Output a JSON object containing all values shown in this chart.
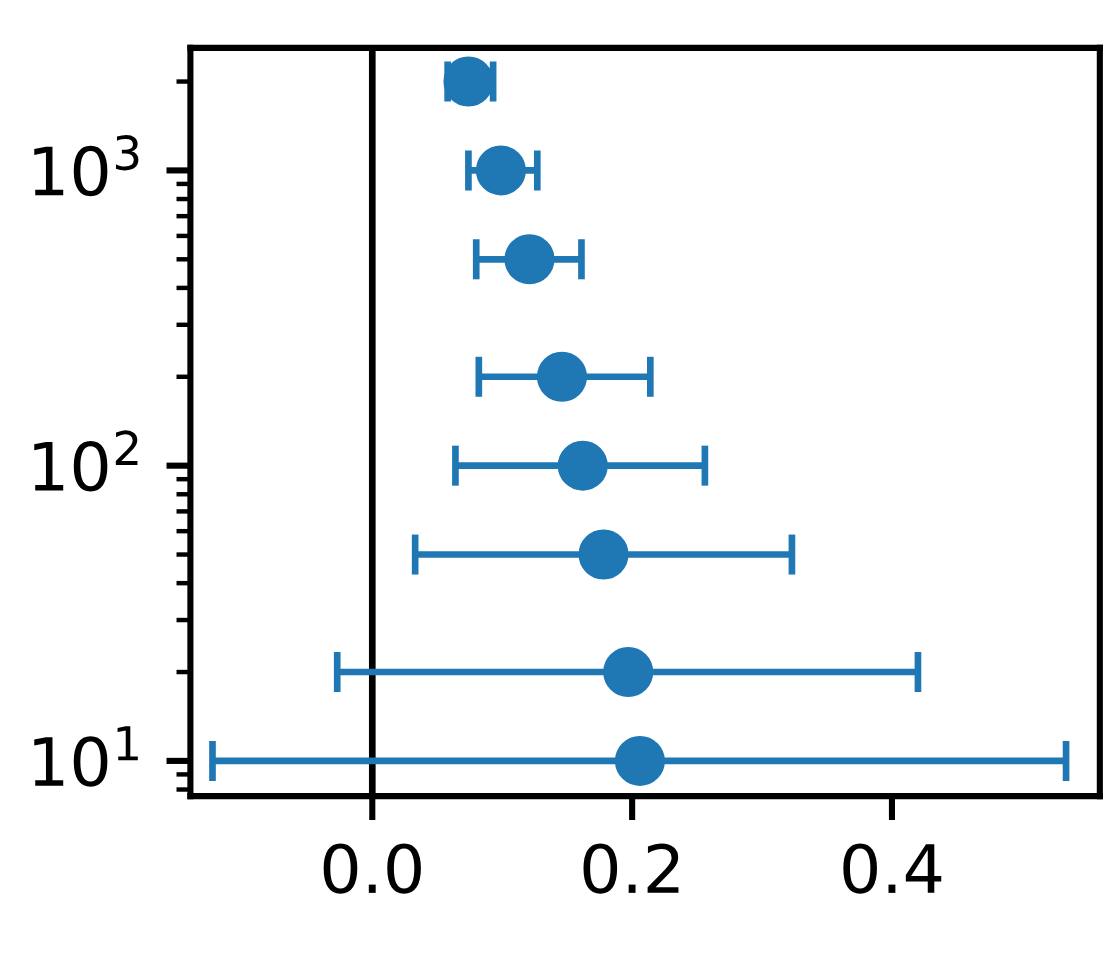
{
  "chart_data": {
    "type": "scatter",
    "series": [
      {
        "color": "#1f77b4",
        "x": [
          0.206,
          0.197,
          0.178,
          0.162,
          0.146,
          0.121,
          0.099,
          0.074
        ],
        "values": [
          10,
          20,
          50,
          100,
          200,
          500,
          1000,
          2000
        ],
        "xerrors": [
          [
            -0.123,
            0.534
          ],
          [
            -0.027,
            0.42
          ],
          [
            0.033,
            0.323
          ],
          [
            0.064,
            0.256
          ],
          [
            0.082,
            0.214
          ],
          [
            0.08,
            0.161
          ],
          [
            0.074,
            0.127
          ],
          [
            0.058,
            0.093
          ]
        ]
      }
    ],
    "marker": "circle",
    "log": "y",
    "grid": false,
    "xlim": [
      -0.14,
      0.56
    ],
    "ylim": [
      7.6,
      2600
    ],
    "xticks": [
      {
        "value": 0,
        "label": "0.0"
      },
      {
        "value": 0.2,
        "label": "0.2"
      },
      {
        "value": 0.4,
        "label": "0.4"
      }
    ],
    "yticks": [
      {
        "value": 8,
        "label": null
      },
      {
        "value": 9,
        "label": null
      },
      {
        "value": 10,
        "label": "10$^{1}$"
      },
      {
        "value": 20,
        "label": null
      },
      {
        "value": 30,
        "label": null
      },
      {
        "value": 40,
        "label": null
      },
      {
        "value": 50,
        "label": null
      },
      {
        "value": 60,
        "label": null
      },
      {
        "value": 70,
        "label": null
      },
      {
        "value": 80,
        "label": null
      },
      {
        "value": 90,
        "label": null
      },
      {
        "value": 100,
        "label": "10$^{2}$"
      },
      {
        "value": 200,
        "label": null
      },
      {
        "value": 300,
        "label": null
      },
      {
        "value": 400,
        "label": null
      },
      {
        "value": 500,
        "label": null
      },
      {
        "value": 600,
        "label": null
      },
      {
        "value": 700,
        "label": null
      },
      {
        "value": 800,
        "label": null
      },
      {
        "value": 900,
        "label": null
      },
      {
        "value": 1000,
        "label": "10$^{3}$"
      },
      {
        "value": 2000,
        "label": null
      }
    ],
    "ref_lines": [
      {
        "axis": "x",
        "value": 0,
        "color": "#000000"
      }
    ]
  }
}
